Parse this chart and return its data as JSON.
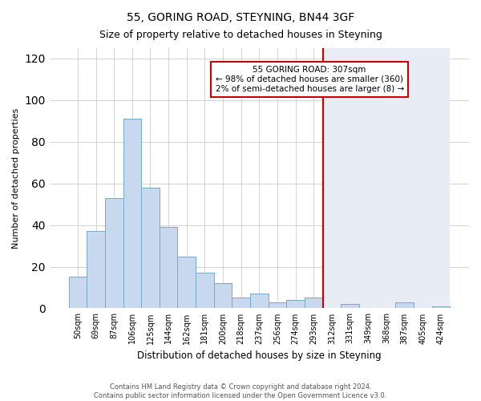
{
  "title": "55, GORING ROAD, STEYNING, BN44 3GF",
  "subtitle": "Size of property relative to detached houses in Steyning",
  "xlabel": "Distribution of detached houses by size in Steyning",
  "ylabel": "Number of detached properties",
  "bar_labels": [
    "50sqm",
    "69sqm",
    "87sqm",
    "106sqm",
    "125sqm",
    "144sqm",
    "162sqm",
    "181sqm",
    "200sqm",
    "218sqm",
    "237sqm",
    "256sqm",
    "274sqm",
    "293sqm",
    "312sqm",
    "331sqm",
    "349sqm",
    "368sqm",
    "387sqm",
    "405sqm",
    "424sqm"
  ],
  "bar_values": [
    15,
    37,
    53,
    91,
    58,
    39,
    25,
    17,
    12,
    5,
    7,
    3,
    4,
    5,
    0,
    2,
    0,
    0,
    3,
    0,
    1
  ],
  "bar_color": "#c8d8ee",
  "bar_edge_color": "#7aaac8",
  "ylim": [
    0,
    125
  ],
  "yticks": [
    0,
    20,
    40,
    60,
    80,
    100,
    120
  ],
  "vline_x_idx": 14,
  "vline_color": "#cc0000",
  "annotation_title": "55 GORING ROAD: 307sqm",
  "annotation_line1": "← 98% of detached houses are smaller (360)",
  "annotation_line2": "2% of semi-detached houses are larger (8) →",
  "annotation_box_color": "#ffffff",
  "annotation_box_edge": "#cc0000",
  "footer1": "Contains HM Land Registry data © Crown copyright and database right 2024.",
  "footer2": "Contains public sector information licensed under the Open Government Licence v3.0.",
  "bg_left": "#ffffff",
  "bg_right": "#e8edf5",
  "grid_color": "#cccccc",
  "title_fontsize": 10,
  "subtitle_fontsize": 9
}
